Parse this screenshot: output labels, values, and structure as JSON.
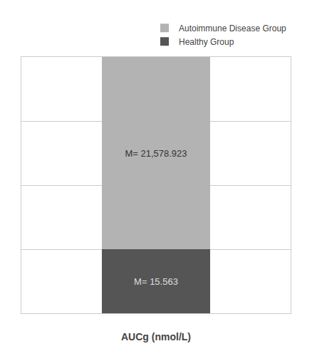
{
  "chart_data": {
    "type": "bar",
    "stacked": true,
    "categories": [
      null
    ],
    "xlabel": "AUCg (nmol/L)",
    "series": [
      {
        "name": "Autoimmune Disease Group",
        "color": "#b3b3b3",
        "values": [
          0.75
        ]
      },
      {
        "name": "Healthy Group",
        "color": "#555555",
        "values": [
          0.25
        ]
      }
    ],
    "annotations": [
      {
        "series": "Autoimmune Disease Group",
        "text": "M= 21,578.923"
      },
      {
        "series": "Healthy Group",
        "text": "M= 15.563"
      }
    ],
    "ylim": [
      0,
      1
    ],
    "yticks": [
      0,
      0.25,
      0.5,
      0.75,
      1
    ],
    "grid": true,
    "tick_labels": false,
    "legend": "upper right"
  }
}
